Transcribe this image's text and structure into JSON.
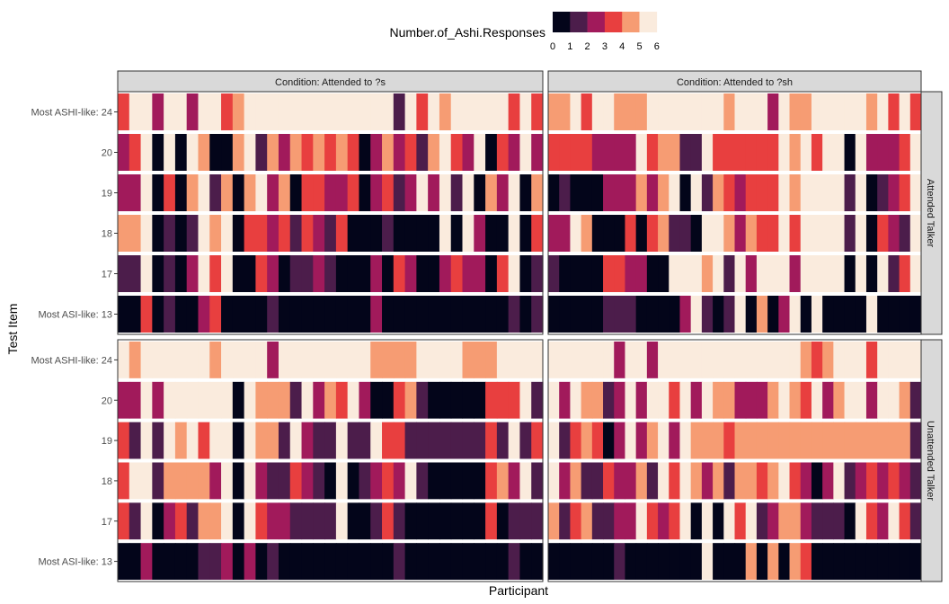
{
  "chart_data": {
    "type": "heatmap",
    "xlabel": "Participant",
    "ylabel": "Test Item",
    "legend": {
      "title": "Number.of_Ashi.Responses",
      "position": "top",
      "breaks": [
        "0",
        "1",
        "2",
        "3",
        "4",
        "5",
        "6"
      ],
      "colors": [
        "#03051A",
        "#4C1D4B",
        "#A11A5B",
        "#E83F3F",
        "#F69C73",
        "#FAEBDD"
      ]
    },
    "facet_columns": [
      "Condition: Attended to ?s",
      "Condition: Attended to ?sh"
    ],
    "facet_rows": [
      "Attended Talker",
      "Unattended Talker"
    ],
    "y_categories": [
      "Most ASHI-like: 24",
      "20",
      "19",
      "18",
      "17",
      "Most ASI-like: 13"
    ],
    "panels": [
      {
        "condition": "Condition: Attended to ?s",
        "talker": "Attended Talker",
        "rows": [
          [
            3,
            5,
            5,
            2,
            5,
            5,
            2,
            5,
            5,
            3,
            4,
            5,
            5,
            5,
            5,
            5,
            5,
            5,
            5,
            5,
            5,
            5,
            5,
            5,
            1,
            5,
            3,
            5,
            4,
            5,
            5,
            5,
            5,
            5,
            3,
            5,
            3
          ],
          [
            2,
            3,
            5,
            0,
            5,
            0,
            5,
            4,
            0,
            0,
            4,
            5,
            1,
            4,
            2,
            4,
            3,
            4,
            3,
            4,
            3,
            0,
            2,
            4,
            2,
            3,
            1,
            4,
            5,
            3,
            2,
            5,
            0,
            3,
            2,
            5,
            2
          ],
          [
            2,
            2,
            5,
            0,
            3,
            0,
            4,
            5,
            1,
            4,
            0,
            4,
            5,
            2,
            4,
            0,
            3,
            3,
            2,
            2,
            3,
            0,
            2,
            3,
            1,
            2,
            5,
            2,
            5,
            1,
            5,
            0,
            4,
            2,
            5,
            0,
            4
          ],
          [
            4,
            4,
            5,
            0,
            1,
            0,
            1,
            5,
            4,
            5,
            0,
            3,
            3,
            2,
            3,
            1,
            3,
            2,
            1,
            3,
            0,
            0,
            0,
            1,
            0,
            0,
            0,
            0,
            5,
            0,
            5,
            2,
            0,
            0,
            5,
            0,
            3
          ],
          [
            1,
            1,
            5,
            0,
            1,
            0,
            2,
            5,
            3,
            5,
            0,
            0,
            3,
            2,
            0,
            1,
            1,
            2,
            1,
            0,
            0,
            0,
            2,
            0,
            3,
            2,
            0,
            0,
            2,
            3,
            2,
            2,
            0,
            3,
            5,
            0,
            1
          ],
          [
            0,
            0,
            3,
            0,
            1,
            0,
            0,
            2,
            3,
            0,
            0,
            0,
            0,
            1,
            0,
            0,
            0,
            0,
            0,
            0,
            0,
            0,
            2,
            0,
            0,
            0,
            0,
            0,
            0,
            0,
            0,
            0,
            0,
            0,
            1,
            0,
            1
          ]
        ]
      },
      {
        "condition": "Condition: Attended to ?sh",
        "talker": "Attended Talker",
        "rows": [
          [
            4,
            4,
            5,
            3,
            5,
            5,
            4,
            4,
            4,
            5,
            5,
            5,
            5,
            5,
            5,
            5,
            4,
            5,
            5,
            5,
            2,
            5,
            4,
            4,
            5,
            5,
            5,
            5,
            5,
            4,
            5,
            3,
            5,
            3
          ],
          [
            3,
            3,
            3,
            3,
            2,
            2,
            2,
            2,
            5,
            3,
            4,
            4,
            1,
            1,
            5,
            3,
            3,
            3,
            3,
            3,
            3,
            5,
            4,
            5,
            3,
            5,
            5,
            0,
            5,
            2,
            2,
            2,
            3,
            5
          ],
          [
            0,
            1,
            0,
            0,
            0,
            2,
            2,
            2,
            4,
            2,
            4,
            5,
            0,
            5,
            1,
            4,
            3,
            2,
            3,
            3,
            3,
            5,
            4,
            5,
            5,
            5,
            5,
            1,
            5,
            0,
            1,
            2,
            3,
            5
          ],
          [
            2,
            2,
            5,
            4,
            0,
            0,
            0,
            3,
            0,
            3,
            4,
            1,
            1,
            0,
            5,
            5,
            4,
            2,
            4,
            3,
            3,
            5,
            3,
            5,
            5,
            5,
            5,
            1,
            5,
            0,
            3,
            2,
            1,
            5
          ],
          [
            1,
            0,
            0,
            0,
            0,
            3,
            3,
            2,
            2,
            0,
            0,
            5,
            5,
            5,
            4,
            5,
            1,
            5,
            2,
            5,
            5,
            5,
            2,
            5,
            5,
            5,
            5,
            0,
            5,
            0,
            5,
            1,
            3,
            5
          ],
          [
            0,
            0,
            0,
            0,
            0,
            1,
            1,
            1,
            0,
            0,
            0,
            0,
            2,
            5,
            1,
            0,
            1,
            5,
            0,
            4,
            0,
            2,
            5,
            0,
            5,
            0,
            0,
            0,
            0,
            5,
            0,
            0,
            0,
            0
          ]
        ]
      },
      {
        "condition": "Condition: Attended to ?s",
        "talker": "Unattended Talker",
        "rows": [
          [
            5,
            4,
            5,
            5,
            5,
            5,
            5,
            5,
            4,
            5,
            5,
            5,
            5,
            2,
            5,
            5,
            5,
            5,
            5,
            5,
            5,
            5,
            4,
            4,
            4,
            4,
            5,
            5,
            5,
            5,
            4,
            4,
            4,
            5,
            5,
            5,
            5
          ],
          [
            2,
            2,
            5,
            2,
            5,
            5,
            5,
            5,
            5,
            5,
            0,
            5,
            4,
            4,
            4,
            1,
            5,
            2,
            4,
            3,
            5,
            2,
            0,
            0,
            3,
            4,
            1,
            0,
            0,
            0,
            0,
            0,
            3,
            3,
            3,
            5,
            1
          ],
          [
            3,
            1,
            5,
            1,
            5,
            4,
            5,
            3,
            5,
            5,
            0,
            5,
            4,
            4,
            1,
            5,
            2,
            1,
            1,
            5,
            1,
            1,
            5,
            3,
            3,
            1,
            1,
            1,
            1,
            1,
            1,
            1,
            3,
            1,
            5,
            1,
            3
          ],
          [
            3,
            5,
            5,
            1,
            4,
            4,
            4,
            4,
            2,
            5,
            0,
            5,
            2,
            1,
            1,
            3,
            2,
            1,
            0,
            5,
            0,
            1,
            2,
            3,
            2,
            5,
            1,
            0,
            0,
            0,
            0,
            0,
            3,
            4,
            2,
            5,
            1
          ],
          [
            3,
            1,
            5,
            0,
            2,
            3,
            1,
            4,
            4,
            5,
            0,
            5,
            3,
            2,
            2,
            1,
            1,
            1,
            1,
            5,
            0,
            0,
            1,
            3,
            1,
            0,
            0,
            0,
            0,
            0,
            0,
            0,
            3,
            0,
            1,
            1,
            1
          ],
          [
            0,
            0,
            2,
            0,
            0,
            0,
            0,
            1,
            1,
            2,
            0,
            2,
            0,
            1,
            0,
            0,
            0,
            0,
            0,
            0,
            0,
            0,
            0,
            0,
            1,
            0,
            0,
            0,
            0,
            0,
            0,
            0,
            0,
            0,
            1,
            0,
            0
          ]
        ]
      },
      {
        "condition": "Condition: Attended to ?sh",
        "talker": "Unattended Talker",
        "rows": [
          [
            5,
            5,
            5,
            5,
            5,
            5,
            2,
            5,
            5,
            2,
            5,
            5,
            5,
            5,
            5,
            5,
            5,
            5,
            5,
            5,
            5,
            5,
            5,
            4,
            3,
            4,
            5,
            5,
            5,
            3,
            5,
            5,
            5,
            5
          ],
          [
            5,
            2,
            5,
            4,
            4,
            1,
            2,
            5,
            2,
            5,
            5,
            3,
            5,
            2,
            5,
            4,
            4,
            2,
            2,
            2,
            4,
            5,
            4,
            3,
            5,
            2,
            4,
            5,
            5,
            2,
            5,
            5,
            4,
            1
          ],
          [
            5,
            1,
            3,
            4,
            3,
            0,
            2,
            5,
            2,
            4,
            5,
            2,
            5,
            4,
            4,
            4,
            3,
            4,
            4,
            4,
            4,
            4,
            4,
            4,
            4,
            4,
            4,
            4,
            4,
            4,
            4,
            4,
            4,
            1
          ],
          [
            5,
            2,
            4,
            1,
            1,
            3,
            2,
            2,
            4,
            1,
            5,
            3,
            5,
            4,
            2,
            4,
            1,
            4,
            4,
            3,
            4,
            5,
            3,
            2,
            0,
            2,
            5,
            1,
            2,
            3,
            2,
            3,
            2,
            1
          ],
          [
            4,
            1,
            3,
            4,
            1,
            1,
            2,
            2,
            5,
            3,
            2,
            3,
            5,
            0,
            5,
            0,
            5,
            3,
            5,
            1,
            2,
            4,
            4,
            2,
            1,
            1,
            1,
            0,
            5,
            3,
            2,
            5,
            3,
            1
          ],
          [
            0,
            0,
            0,
            0,
            0,
            0,
            1,
            0,
            0,
            0,
            0,
            0,
            0,
            0,
            5,
            0,
            0,
            0,
            4,
            0,
            4,
            0,
            4,
            3,
            0,
            0,
            0,
            0,
            0,
            0,
            0,
            0,
            0,
            0
          ]
        ]
      }
    ]
  }
}
